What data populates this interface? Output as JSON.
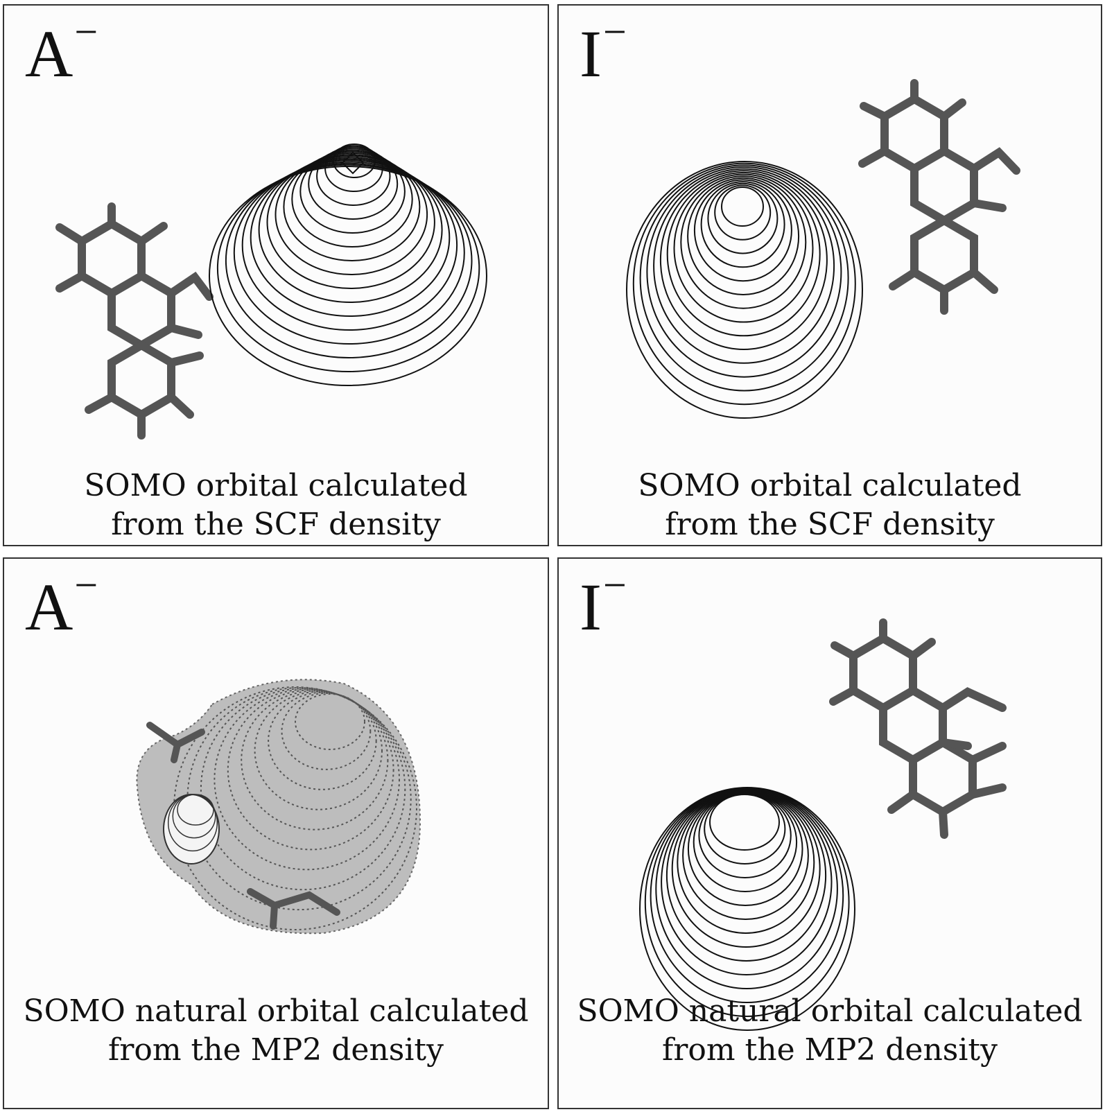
{
  "panels": [
    {
      "label": "A",
      "charge": "−",
      "caption_line1": "SOMO orbital calculated",
      "caption_line2": "from the SCF density"
    },
    {
      "label": "I",
      "charge": "−",
      "caption_line1": "SOMO orbital calculated",
      "caption_line2": "from the SCF density"
    },
    {
      "label": "A",
      "charge": "−",
      "caption_line1": "SOMO natural orbital calculated",
      "caption_line2": "from the MP2 density"
    },
    {
      "label": "I",
      "charge": "−",
      "caption_line1": "SOMO natural orbital calculated",
      "caption_line2": "from the MP2 density"
    }
  ],
  "colors": {
    "molecule": "#555555",
    "contour": "#111111",
    "shaded_orbital": "#bdbdbd"
  }
}
